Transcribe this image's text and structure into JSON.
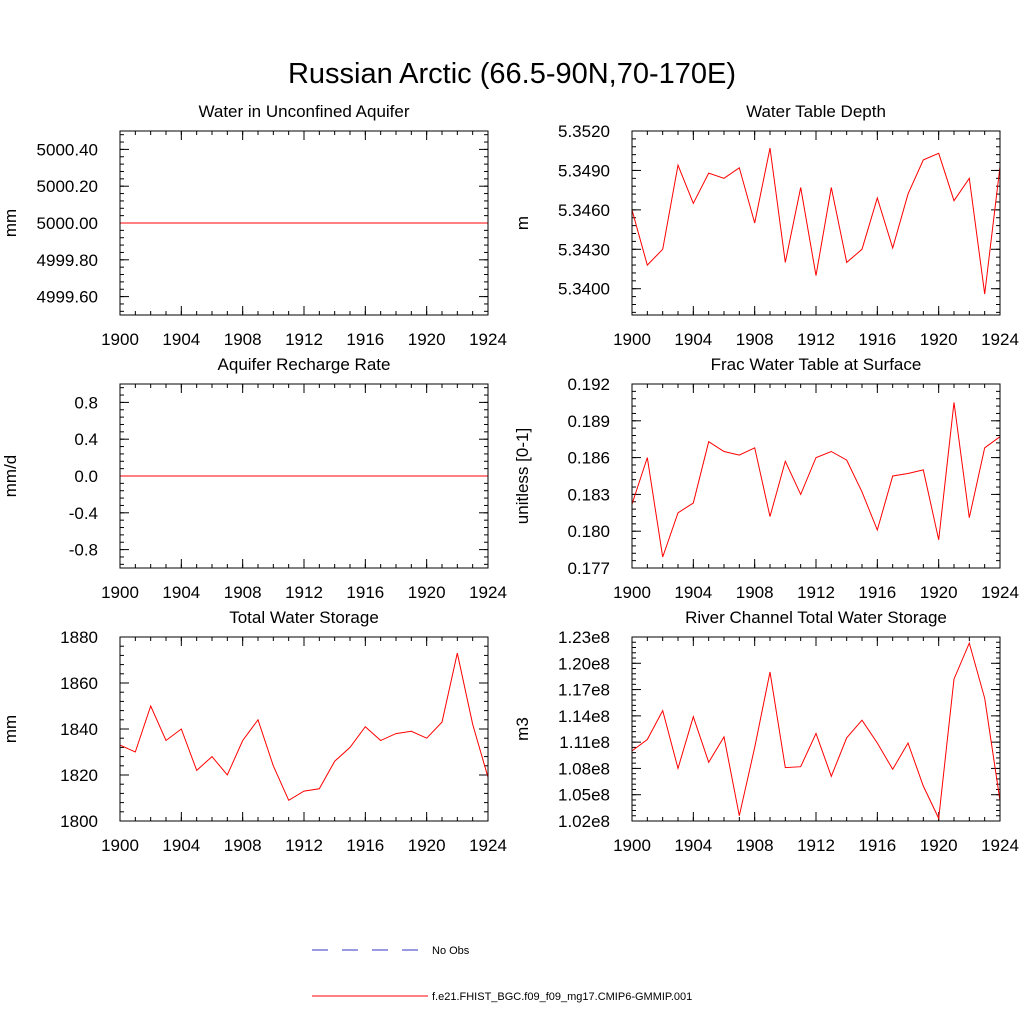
{
  "figure": {
    "title": "Russian Arctic (66.5-90N,70-170E)"
  },
  "legend": {
    "items": [
      {
        "label": "No Obs",
        "color": "#3333cc",
        "dash": true
      },
      {
        "label": "f.e21.FHIST_BGC.f09_f09_mg17.CMIP6-GMMIP.001",
        "color": "#ff0000",
        "dash": false
      }
    ]
  },
  "colors": {
    "model": "#ff0000",
    "obs": "#3333cc"
  },
  "chart_data": [
    {
      "type": "line",
      "title": "Water in Unconfined Aquifer",
      "xlabel": "",
      "ylabel": "mm",
      "xlim": [
        1900,
        1924
      ],
      "ylim": [
        4999.5,
        5000.5
      ],
      "xticks": [
        1900,
        1904,
        1908,
        1912,
        1916,
        1920,
        1924
      ],
      "xtick_labels": [
        "1900",
        "1904",
        "1908",
        "1912",
        "1916",
        "1920",
        "1924"
      ],
      "yticks": [
        4999.6,
        4999.8,
        5000.0,
        5000.2,
        5000.4
      ],
      "ytick_labels": [
        "4999.60",
        "4999.80",
        "5000.00",
        "5000.20",
        "5000.40"
      ],
      "x": [
        1900,
        1901,
        1902,
        1903,
        1904,
        1905,
        1906,
        1907,
        1908,
        1909,
        1910,
        1911,
        1912,
        1913,
        1914,
        1915,
        1916,
        1917,
        1918,
        1919,
        1920,
        1921,
        1922,
        1923,
        1924
      ],
      "y": [
        5000,
        5000,
        5000,
        5000,
        5000,
        5000,
        5000,
        5000,
        5000,
        5000,
        5000,
        5000,
        5000,
        5000,
        5000,
        5000,
        5000,
        5000,
        5000,
        5000,
        5000,
        5000,
        5000,
        5000,
        5000
      ]
    },
    {
      "type": "line",
      "title": "Water Table Depth",
      "xlabel": "",
      "ylabel": "m",
      "xlim": [
        1900,
        1924
      ],
      "ylim": [
        5.338,
        5.352
      ],
      "xticks": [
        1900,
        1904,
        1908,
        1912,
        1916,
        1920,
        1924
      ],
      "xtick_labels": [
        "1900",
        "1904",
        "1908",
        "1912",
        "1916",
        "1920",
        "1924"
      ],
      "yticks": [
        5.34,
        5.343,
        5.346,
        5.349,
        5.352
      ],
      "ytick_labels": [
        "5.3400",
        "5.3430",
        "5.3460",
        "5.3490",
        "5.3520"
      ],
      "x": [
        1900,
        1901,
        1902,
        1903,
        1904,
        1905,
        1906,
        1907,
        1908,
        1909,
        1910,
        1911,
        1912,
        1913,
        1914,
        1915,
        1916,
        1917,
        1918,
        1919,
        1920,
        1921,
        1922,
        1923,
        1924
      ],
      "y": [
        5.346,
        5.3418,
        5.343,
        5.3494,
        5.3465,
        5.3488,
        5.3484,
        5.3492,
        5.345,
        5.3507,
        5.342,
        5.3477,
        5.341,
        5.3477,
        5.342,
        5.343,
        5.3469,
        5.3431,
        5.3472,
        5.3498,
        5.3503,
        5.3467,
        5.3484,
        5.3396,
        5.3493
      ]
    },
    {
      "type": "line",
      "title": "Aquifer Recharge Rate",
      "xlabel": "",
      "ylabel": "mm/d",
      "xlim": [
        1900,
        1924
      ],
      "ylim": [
        -1.0,
        1.0
      ],
      "xticks": [
        1900,
        1904,
        1908,
        1912,
        1916,
        1920,
        1924
      ],
      "xtick_labels": [
        "1900",
        "1904",
        "1908",
        "1912",
        "1916",
        "1920",
        "1924"
      ],
      "yticks": [
        -0.8,
        -0.4,
        0.0,
        0.4,
        0.8
      ],
      "ytick_labels": [
        "-0.8",
        "-0.4",
        "0.0",
        "0.4",
        "0.8"
      ],
      "x": [
        1900,
        1901,
        1902,
        1903,
        1904,
        1905,
        1906,
        1907,
        1908,
        1909,
        1910,
        1911,
        1912,
        1913,
        1914,
        1915,
        1916,
        1917,
        1918,
        1919,
        1920,
        1921,
        1922,
        1923,
        1924
      ],
      "y": [
        0,
        0,
        0,
        0,
        0,
        0,
        0,
        0,
        0,
        0,
        0,
        0,
        0,
        0,
        0,
        0,
        0,
        0,
        0,
        0,
        0,
        0,
        0,
        0,
        0
      ]
    },
    {
      "type": "line",
      "title": "Frac Water Table at Surface",
      "xlabel": "",
      "ylabel": "unitless [0-1]",
      "xlim": [
        1900,
        1924
      ],
      "ylim": [
        0.177,
        0.192
      ],
      "xticks": [
        1900,
        1904,
        1908,
        1912,
        1916,
        1920,
        1924
      ],
      "xtick_labels": [
        "1900",
        "1904",
        "1908",
        "1912",
        "1916",
        "1920",
        "1924"
      ],
      "yticks": [
        0.177,
        0.18,
        0.183,
        0.186,
        0.189,
        0.192
      ],
      "ytick_labels": [
        "0.177",
        "0.180",
        "0.183",
        "0.186",
        "0.189",
        "0.192"
      ],
      "x": [
        1900,
        1901,
        1902,
        1903,
        1904,
        1905,
        1906,
        1907,
        1908,
        1909,
        1910,
        1911,
        1912,
        1913,
        1914,
        1915,
        1916,
        1917,
        1918,
        1919,
        1920,
        1921,
        1922,
        1923,
        1924
      ],
      "y": [
        0.1822,
        0.186,
        0.1779,
        0.1815,
        0.1823,
        0.1873,
        0.1865,
        0.1862,
        0.1868,
        0.1812,
        0.1857,
        0.183,
        0.186,
        0.1865,
        0.1858,
        0.1832,
        0.1801,
        0.1845,
        0.1847,
        0.185,
        0.1793,
        0.1905,
        0.1811,
        0.1868,
        0.1877
      ]
    },
    {
      "type": "line",
      "title": "Total Water Storage",
      "xlabel": "",
      "ylabel": "mm",
      "xlim": [
        1900,
        1924
      ],
      "ylim": [
        1800,
        1880
      ],
      "xticks": [
        1900,
        1904,
        1908,
        1912,
        1916,
        1920,
        1924
      ],
      "xtick_labels": [
        "1900",
        "1904",
        "1908",
        "1912",
        "1916",
        "1920",
        "1924"
      ],
      "yticks": [
        1800,
        1820,
        1840,
        1860,
        1880
      ],
      "ytick_labels": [
        "1800",
        "1820",
        "1840",
        "1860",
        "1880"
      ],
      "x": [
        1900,
        1901,
        1902,
        1903,
        1904,
        1905,
        1906,
        1907,
        1908,
        1909,
        1910,
        1911,
        1912,
        1913,
        1914,
        1915,
        1916,
        1917,
        1918,
        1919,
        1920,
        1921,
        1922,
        1923,
        1924
      ],
      "y": [
        1833,
        1830,
        1850,
        1835,
        1840,
        1822,
        1828,
        1820,
        1835,
        1844,
        1824,
        1809,
        1813,
        1814,
        1826,
        1832,
        1841,
        1835,
        1838,
        1839,
        1836,
        1843,
        1873,
        1842,
        1819
      ]
    },
    {
      "type": "line",
      "title": "River Channel Total Water Storage",
      "xlabel": "",
      "ylabel": "m3",
      "xlim": [
        1900,
        1924
      ],
      "ylim": [
        102000000,
        123000000
      ],
      "xticks": [
        1900,
        1904,
        1908,
        1912,
        1916,
        1920,
        1924
      ],
      "xtick_labels": [
        "1900",
        "1904",
        "1908",
        "1912",
        "1916",
        "1920",
        "1924"
      ],
      "yticks": [
        102000000,
        105000000,
        108000000,
        111000000,
        114000000,
        117000000,
        120000000,
        123000000
      ],
      "ytick_labels": [
        "1.02e8",
        "1.05e8",
        "1.08e8",
        "1.11e8",
        "1.14e8",
        "1.17e8",
        "1.20e8",
        "1.23e8"
      ],
      "x": [
        1900,
        1901,
        1902,
        1903,
        1904,
        1905,
        1906,
        1907,
        1908,
        1909,
        1910,
        1911,
        1912,
        1913,
        1914,
        1915,
        1916,
        1917,
        1918,
        1919,
        1920,
        1921,
        1922,
        1923,
        1924
      ],
      "y": [
        110000000,
        111300000,
        114600000,
        108000000,
        113900000,
        108700000,
        111600000,
        102600000,
        110400000,
        119000000,
        108100000,
        108200000,
        112000000,
        107100000,
        111500000,
        113500000,
        110900000,
        107900000,
        110900000,
        106000000,
        102300000,
        118200000,
        122300000,
        116000000,
        104300000
      ]
    }
  ]
}
